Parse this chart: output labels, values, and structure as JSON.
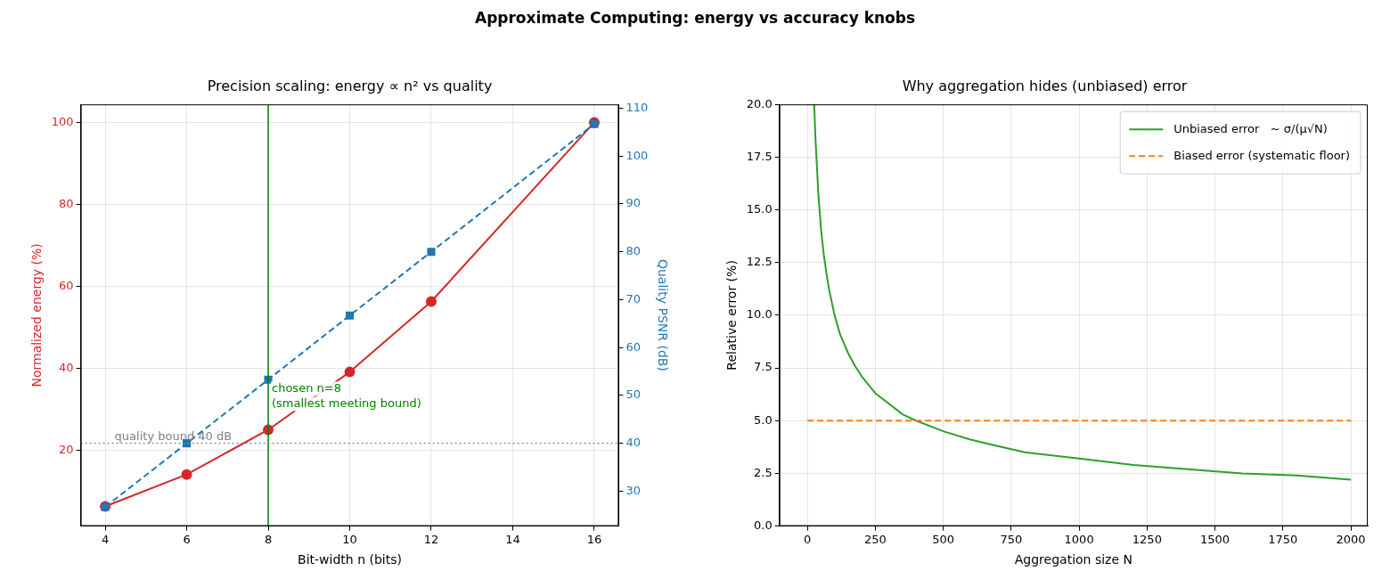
{
  "chart_data": [
    {
      "type": "line",
      "title": "Precision scaling: energy ∝ n² vs quality",
      "xlabel": "Bit-width n (bits)",
      "ylabel": "Normalized energy (%)",
      "y2label": "Quality PSNR (dB)",
      "x": [
        4,
        6,
        8,
        10,
        12,
        16
      ],
      "series": [
        {
          "color": "#d62728",
          "marker": "circle",
          "line_style": "solid",
          "values": [
            6.3,
            14.1,
            25,
            39.1,
            56.3,
            100
          ]
        },
        {
          "color": "#1f77b4",
          "marker": "square",
          "line_style": "dashed",
          "axis": "y2",
          "values": [
            26.7,
            40,
            53.3,
            66.7,
            80,
            106.7
          ]
        }
      ],
      "xlim": [
        3.4,
        16.6
      ],
      "xticks": [
        4,
        6,
        8,
        10,
        12,
        14,
        16
      ],
      "ylim": [
        1.5,
        104.4
      ],
      "yticks": [
        20,
        40,
        60,
        80,
        100
      ],
      "y2lim": [
        22.7,
        110.8
      ],
      "y2ticks": [
        30,
        40,
        50,
        60,
        70,
        80,
        90,
        100,
        110
      ],
      "ref_lines": [
        {
          "axis": "x",
          "value": 8,
          "color": "#008000",
          "line_style": "solid"
        },
        {
          "axis": "y2",
          "value": 40,
          "label": "quality bound 40 dB",
          "color": "#808080",
          "line_style": "dotted"
        }
      ],
      "annotations": [
        "Approximate Computing: energy vs accuracy knobs",
        {
          "text": "chosen n=8\n(smallest meeting bound)",
          "x": 8,
          "y": 35
        }
      ],
      "grid": true,
      "legend": false
    },
    {
      "type": "line",
      "title": "Why aggregation hides (unbiased) error",
      "xlabel": "Aggregation size N",
      "ylabel": "Relative error (%)",
      "series": [
        {
          "name": "Unbiased error   ~ σ/(μ√N)",
          "color": "#2ca02c",
          "line_style": "solid",
          "marker": "none",
          "x": [
            25,
            30,
            40,
            50,
            60,
            70,
            80,
            100,
            120,
            150,
            175,
            200,
            250,
            300,
            350,
            400,
            500,
            600,
            700,
            800,
            1000,
            1200,
            1400,
            1600,
            1800,
            2000
          ],
          "values": [
            20,
            18.3,
            15.8,
            14.1,
            12.9,
            12,
            11.2,
            10,
            9.1,
            8.2,
            7.6,
            7.1,
            6.3,
            5.8,
            5.3,
            5,
            4.5,
            4.1,
            3.8,
            3.5,
            3.2,
            2.9,
            2.7,
            2.5,
            2.4,
            2.2
          ]
        },
        {
          "name": "Biased error (systematic floor)",
          "color": "#ff7f0e",
          "line_style": "dashed",
          "marker": "none",
          "x": [
            0,
            2000
          ],
          "values": [
            5,
            5
          ]
        }
      ],
      "xlim": [
        -103,
        2062
      ],
      "xticks": [
        0,
        250,
        500,
        750,
        1000,
        1250,
        1500,
        1750,
        2000
      ],
      "ylim": [
        0,
        20
      ],
      "yticks": [
        {
          "value": 0,
          "label": "0.0"
        },
        {
          "value": 2.5,
          "label": "2.5"
        },
        {
          "value": 5,
          "label": "5.0"
        },
        {
          "value": 7.5,
          "label": "7.5"
        },
        {
          "value": 10,
          "label": "10.0"
        },
        {
          "value": 12.5,
          "label": "12.5"
        },
        {
          "value": 15,
          "label": "15.0"
        },
        {
          "value": 17.5,
          "label": "17.5"
        },
        {
          "value": 20,
          "label": "20.0"
        }
      ],
      "grid": true,
      "legend": "top right"
    }
  ]
}
